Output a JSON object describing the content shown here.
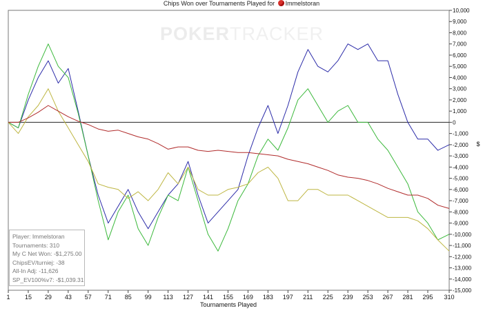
{
  "header": {
    "title": "Chips Won over Tournaments Played for",
    "player": "Immelstoran"
  },
  "watermark": {
    "part1": "POKER",
    "part2": "TRACKER"
  },
  "info_box": {
    "player": "Player: Immelstoran",
    "tournaments": "Tournaments: 310",
    "net_won": "My C Net Won: -$1,275.00",
    "chips_ev": "ChipsEV/turniej: -38",
    "allin_adj": "All-In Adj: -11,626",
    "sp_ev": "SP_EV100%v7: -$1,039.31"
  },
  "chart_data": {
    "type": "line",
    "xlabel": "Tournaments Played",
    "ylabel": "$",
    "xlim": [
      1,
      310
    ],
    "ylim": [
      -15000,
      10000
    ],
    "x_ticks": [
      1,
      15,
      29,
      43,
      57,
      71,
      85,
      99,
      113,
      127,
      141,
      155,
      169,
      183,
      197,
      211,
      225,
      239,
      253,
      267,
      281,
      295,
      310
    ],
    "y_ticks": [
      10000,
      9000,
      8000,
      7000,
      6000,
      5000,
      4000,
      3000,
      2000,
      1000,
      0,
      -1000,
      -2000,
      -3000,
      -4000,
      -5000,
      -6000,
      -7000,
      -8000,
      -9000,
      -10000,
      -11000,
      -12000,
      -13000,
      -14000,
      -15000
    ],
    "y_tick_labels": [
      "10,000",
      "9,000",
      "8,000",
      "7,000",
      "6,000",
      "5,000",
      "4,000",
      "3,000",
      "2,000",
      "1,000",
      "0",
      "-1,000",
      "-2,000",
      "-3,000",
      "-4,000",
      "-5,000",
      "-6,000",
      "-7,000",
      "-8,000",
      "-9,000",
      "-10,000",
      "-11,000",
      "-12,000",
      "-13,000",
      "-14,000",
      "-15,000"
    ],
    "series": [
      {
        "color": "#2a2aa8",
        "x": [
          1,
          8,
          15,
          22,
          29,
          36,
          43,
          50,
          57,
          64,
          71,
          78,
          85,
          92,
          99,
          106,
          113,
          120,
          127,
          134,
          141,
          148,
          155,
          162,
          169,
          176,
          183,
          190,
          197,
          204,
          211,
          218,
          225,
          232,
          239,
          246,
          253,
          260,
          267,
          274,
          281,
          288,
          295,
          302,
          310
        ],
        "y": [
          0,
          -500,
          2000,
          4000,
          5500,
          3500,
          4800,
          1000,
          -3000,
          -6500,
          -9000,
          -7500,
          -6000,
          -8000,
          -9500,
          -8000,
          -6500,
          -5500,
          -3500,
          -6500,
          -9000,
          -8000,
          -7000,
          -6000,
          -3000,
          -500,
          1500,
          -1000,
          1500,
          4500,
          6500,
          5000,
          4500,
          5500,
          7000,
          6500,
          7000,
          5500,
          5500,
          2500,
          0,
          -1500,
          -1500,
          -2500,
          -2000
        ]
      },
      {
        "color": "#3ab83a",
        "x": [
          1,
          8,
          15,
          22,
          29,
          36,
          43,
          50,
          57,
          64,
          71,
          78,
          85,
          92,
          99,
          106,
          113,
          120,
          127,
          134,
          141,
          148,
          155,
          162,
          169,
          176,
          183,
          190,
          197,
          204,
          211,
          218,
          225,
          232,
          239,
          246,
          253,
          260,
          267,
          274,
          281,
          288,
          295,
          302,
          310
        ],
        "y": [
          0,
          -500,
          2500,
          5000,
          7000,
          5000,
          4000,
          800,
          -3000,
          -7000,
          -10500,
          -8000,
          -6500,
          -9500,
          -11000,
          -8500,
          -6500,
          -7000,
          -4000,
          -7000,
          -10000,
          -11500,
          -9500,
          -7000,
          -5500,
          -3000,
          -1500,
          -2500,
          -500,
          2000,
          3000,
          1500,
          0,
          1000,
          1500,
          0,
          0,
          -1500,
          -2500,
          -4000,
          -5500,
          -8000,
          -9000,
          -10500,
          -10000
        ]
      },
      {
        "color": "#bdb540",
        "x": [
          1,
          8,
          15,
          22,
          29,
          36,
          43,
          50,
          57,
          64,
          71,
          78,
          85,
          92,
          99,
          106,
          113,
          120,
          127,
          134,
          141,
          148,
          155,
          162,
          169,
          176,
          183,
          190,
          197,
          204,
          211,
          218,
          225,
          232,
          239,
          246,
          253,
          260,
          267,
          274,
          281,
          288,
          295,
          302,
          310
        ],
        "y": [
          0,
          -1000,
          500,
          1500,
          3000,
          1000,
          -500,
          -2000,
          -3500,
          -5500,
          -5800,
          -6000,
          -6800,
          -6200,
          -7000,
          -6000,
          -4500,
          -5500,
          -4000,
          -6000,
          -6500,
          -6500,
          -6000,
          -5800,
          -5500,
          -4500,
          -4000,
          -5000,
          -7000,
          -7000,
          -6000,
          -6000,
          -6500,
          -6500,
          -6500,
          -7000,
          -7500,
          -8000,
          -8500,
          -8500,
          -8500,
          -8800,
          -9500,
          -10500,
          -11500
        ]
      },
      {
        "color": "#b02a2a",
        "x": [
          1,
          8,
          15,
          22,
          29,
          36,
          43,
          50,
          57,
          64,
          71,
          78,
          85,
          92,
          99,
          106,
          113,
          120,
          127,
          134,
          141,
          148,
          155,
          162,
          169,
          176,
          183,
          190,
          197,
          204,
          211,
          218,
          225,
          232,
          239,
          246,
          253,
          260,
          267,
          274,
          281,
          288,
          295,
          302,
          310
        ],
        "y": [
          0,
          0,
          400,
          900,
          1500,
          1000,
          500,
          100,
          -200,
          -600,
          -800,
          -700,
          -1000,
          -1300,
          -1500,
          -1900,
          -2400,
          -2200,
          -2200,
          -2500,
          -2600,
          -2500,
          -2600,
          -2700,
          -2700,
          -2800,
          -2900,
          -3000,
          -3300,
          -3500,
          -3700,
          -4000,
          -4300,
          -4700,
          -4900,
          -5000,
          -5200,
          -5500,
          -5900,
          -6200,
          -6500,
          -6500,
          -6800,
          -7400,
          -7700
        ]
      }
    ]
  }
}
